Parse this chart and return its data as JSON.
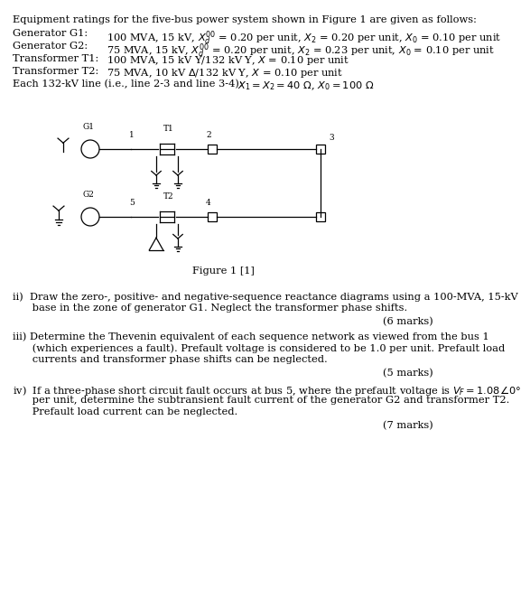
{
  "bg_color": "#ffffff",
  "text_color": "#000000",
  "fs_title": 8.2,
  "fs_body": 8.2,
  "fs_small": 7.0,
  "ff": "DejaVu Serif",
  "title": "Equipment ratings for the five-bus power system shown in Figure 1 are given as follows:",
  "g1_label": "Generator G1:",
  "g1_data": "100 MVA, 15 kV, $X_d^{\\prime\\prime}$ = 0.20 per unit, $X_2$ = 0.20 per unit, $X_0$ = 0.10 per unit",
  "g2_label": "Generator G2:",
  "g2_data": "75 MVA, 15 kV, $X_d^{\\prime\\prime}$ = 0.20 per unit, $X_2$ = 0.23 per unit, $X_0$ = 0.10 per unit",
  "t1_label": "Transformer T1:",
  "t1_data": "100 MVA, 15 kV Y/132 kV Y, $X$ = 0.10 per unit",
  "t2_label": "Transformer T2:",
  "t2_data": "75 MVA, 10 kV $\\Delta$/132 kV Y, $X$ = 0.10 per unit",
  "line_label": "Each 132-kV line (i.e., line 2-3 and line 3-4):",
  "line_data": "$X_1 = X_2 = 40\\ \\Omega$, $X_0 = 100\\ \\Omega$",
  "fig_caption": "Figure 1 [1]",
  "qii_1": "ii)  Draw the zero-, positive- and negative-sequence reactance diagrams using a 100-MVA, 15-kV",
  "qii_2": "      base in the zone of generator G1. Neglect the transformer phase shifts.",
  "qii_marks": "(6 marks)",
  "qiii_1": "iii) Determine the Thevenin equivalent of each sequence network as viewed from the bus 1",
  "qiii_2": "      (which experiences a fault). Prefault voltage is considered to be 1.0 per unit. Prefault load",
  "qiii_3": "      currents and transformer phase shifts can be neglected.",
  "qiii_marks": "(5 marks)",
  "qiv_1": "iv)  If a three-phase short circuit fault occurs at bus 5, where the prefault voltage is $V_F = 1.08\\angle0°$",
  "qiv_2": "      per unit, determine the subtransient fault current of the generator G2 and transformer T2.",
  "qiv_3": "      Prefault load current can be neglected.",
  "qiv_marks": "(7 marks)"
}
